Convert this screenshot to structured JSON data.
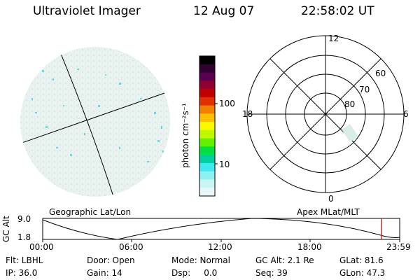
{
  "header": {
    "title": "Ultraviolet Imager",
    "date": "12 Aug 07",
    "time": "22:58:02 UT"
  },
  "colorbar": {
    "unit_label": "photon cm⁻²s⁻¹",
    "ticks": [
      "100",
      "10"
    ],
    "colors": [
      "#000000",
      "#300030",
      "#5a0050",
      "#900030",
      "#c00000",
      "#e03000",
      "#f08000",
      "#f8c000",
      "#f8f800",
      "#c0f800",
      "#60f000",
      "#00e040",
      "#00d0a0",
      "#40e8f0",
      "#90f0f0",
      "#c8f4f4",
      "#e8f8f8"
    ]
  },
  "polar": {
    "mlt_labels": [
      "12",
      "18",
      "6",
      "0"
    ],
    "lat_labels": [
      "60",
      "70",
      "80"
    ]
  },
  "timeline": {
    "ylabel": "GC Alt",
    "y_ticks": [
      "9.0",
      "1.8"
    ],
    "left_title": "Geographic Lat/Lon",
    "right_title": "Apex  MLat/MLT",
    "x_ticks": [
      "00:00",
      "06:00",
      "12:00",
      "18:00",
      "23:59"
    ]
  },
  "info": {
    "row1": [
      "Flt: LBHL",
      "Door: Open",
      "Mode: Normal",
      "GC Alt: 2.1 Re",
      "GLat:  81.6"
    ],
    "row2": [
      "IP: 36.0",
      "Gain: 14",
      "Dsp:     0.0",
      "Seq: 39",
      "GLon:  47.3"
    ]
  }
}
